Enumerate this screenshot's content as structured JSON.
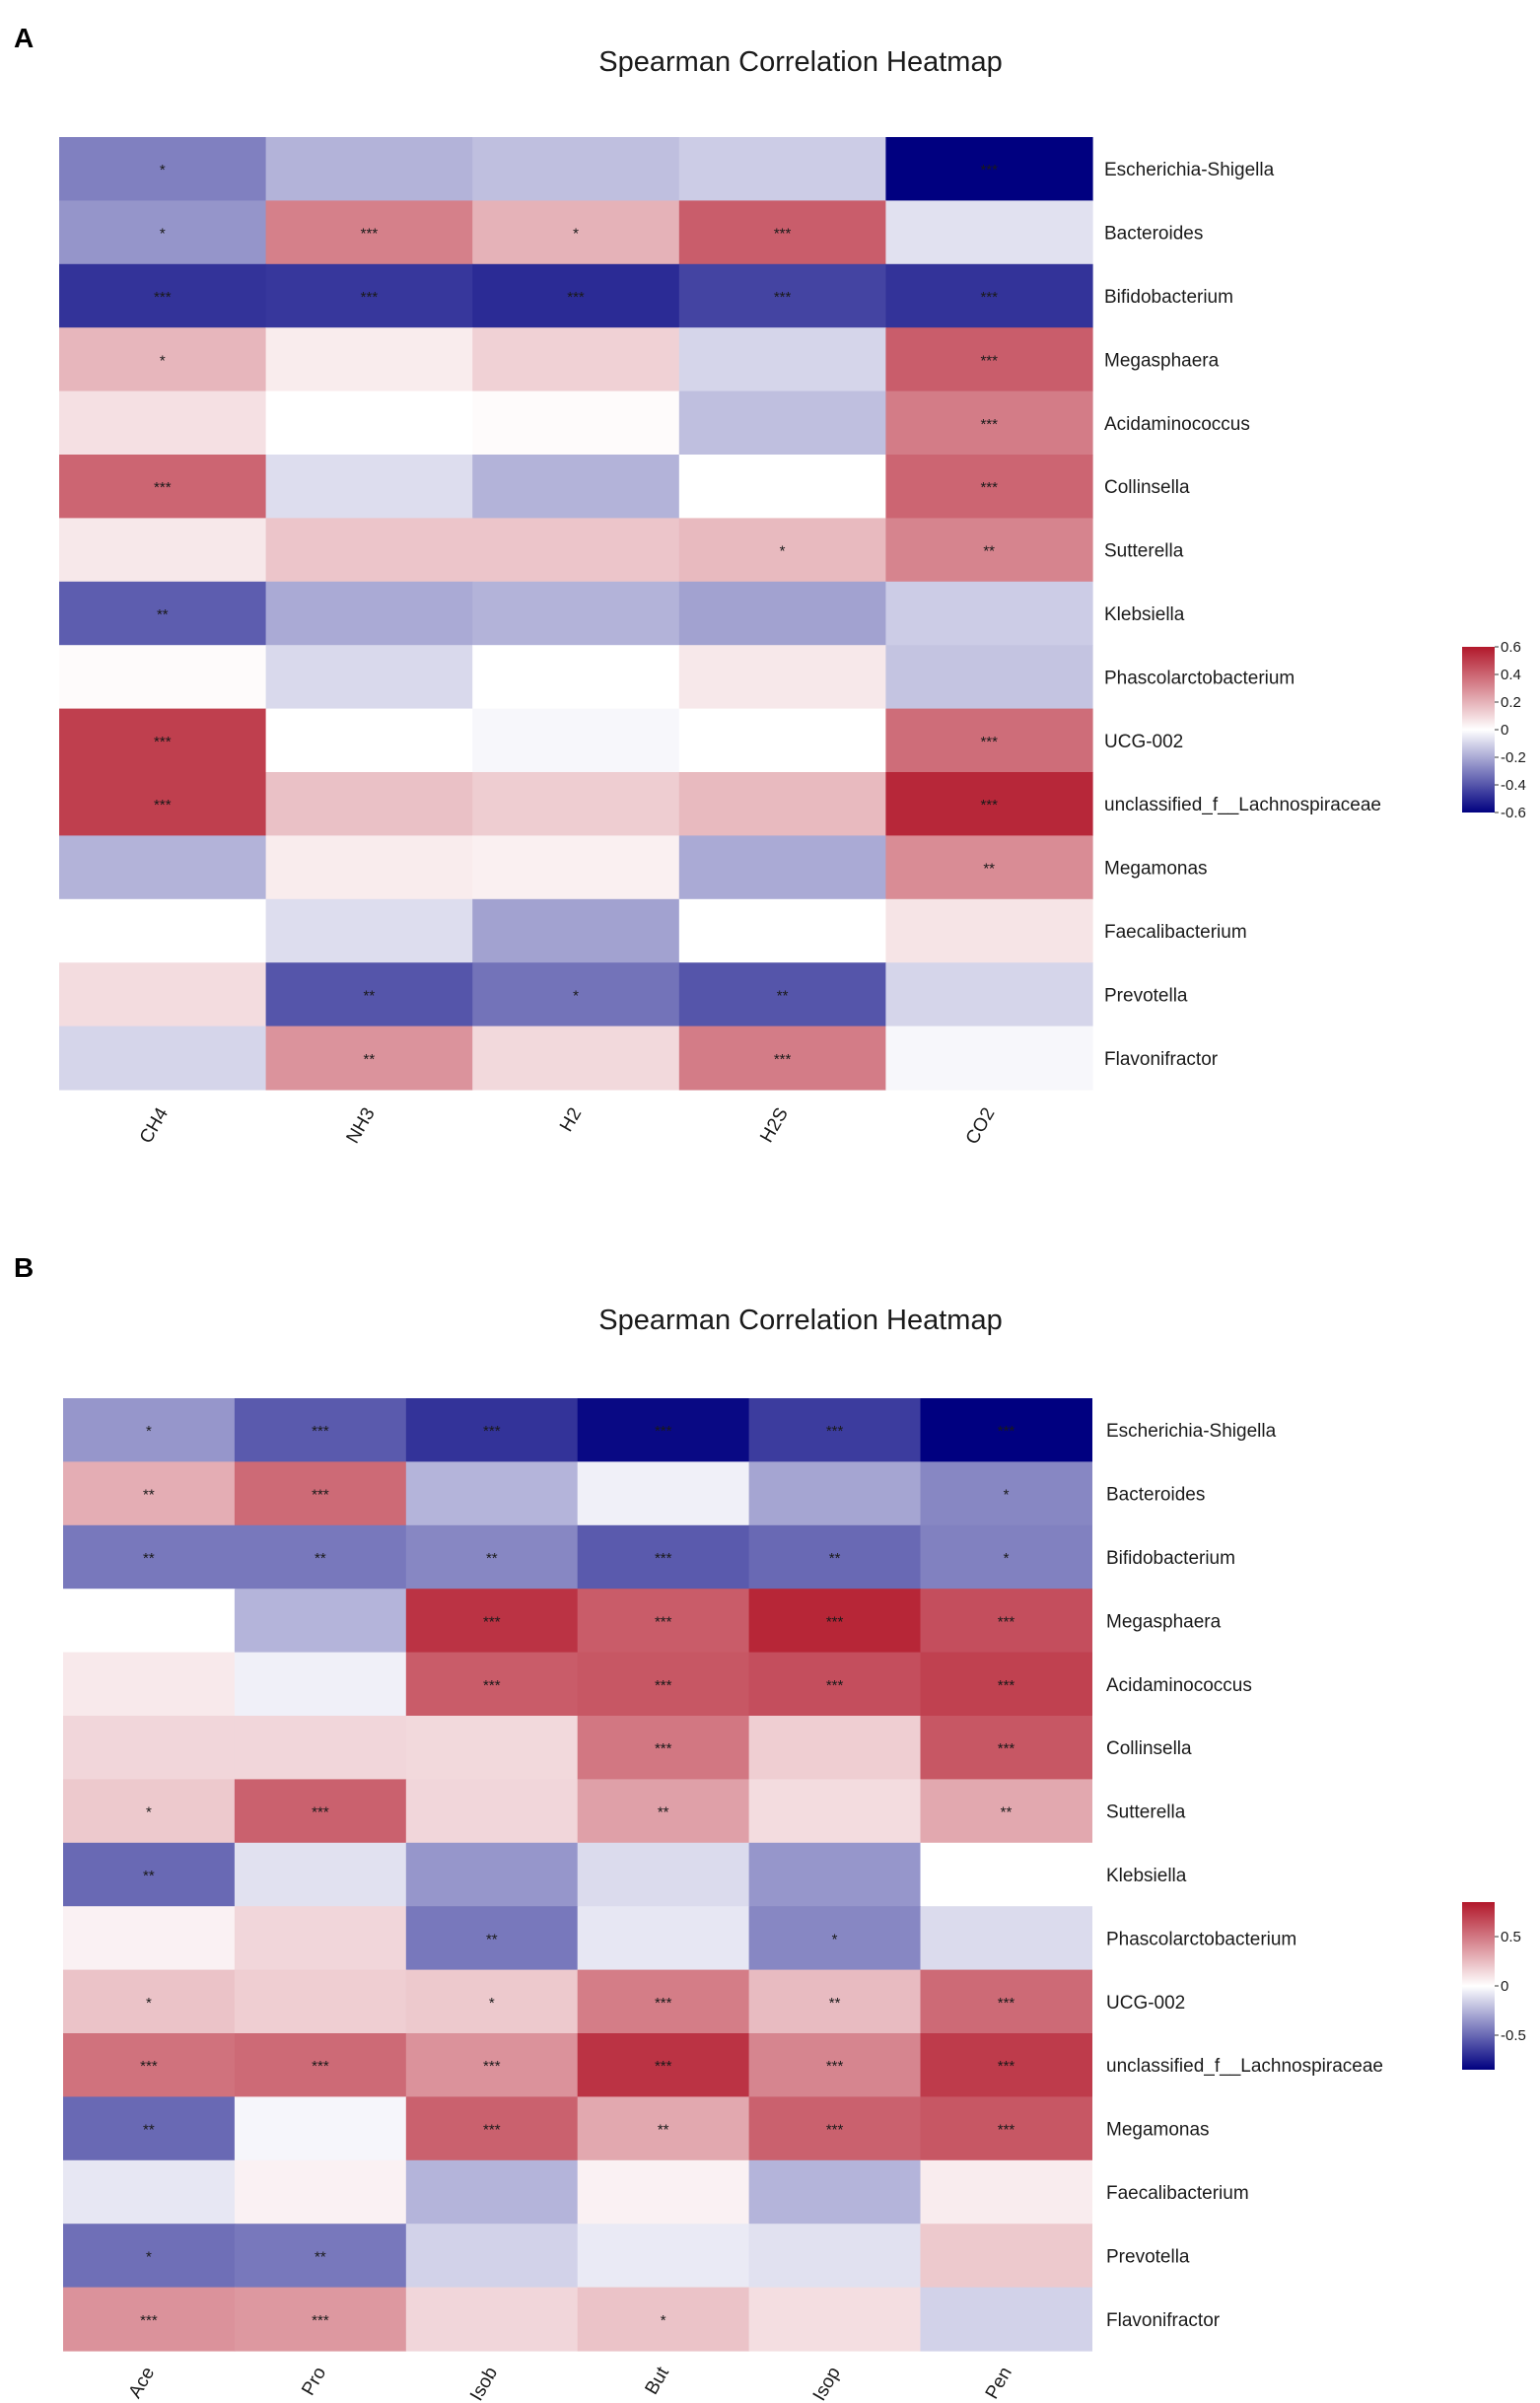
{
  "chart_data": [
    {
      "panel": "A",
      "type": "heatmap",
      "title": "Spearman Correlation Heatmap",
      "columns": [
        "CH4",
        "NH3",
        "H2",
        "H2S",
        "CO2"
      ],
      "rows": [
        "Escherichia-Shigella",
        "Bacteroides",
        "Bifidobacterium",
        "Megasphaera",
        "Acidaminococcus",
        "Collinsella",
        "Sutterella",
        "Klebsiella",
        "Phascolarctobacterium",
        "UCG-002",
        "unclassified_f__Lachnospiraceae",
        "Megamonas",
        "Faecalibacterium",
        "Prevotella",
        "Flavonifractor"
      ],
      "values": [
        [
          -0.3,
          -0.18,
          -0.15,
          -0.12,
          -0.6
        ],
        [
          -0.25,
          0.33,
          0.2,
          0.42,
          -0.07
        ],
        [
          -0.48,
          -0.47,
          -0.5,
          -0.44,
          -0.48
        ],
        [
          0.19,
          0.05,
          0.12,
          -0.1,
          0.42
        ],
        [
          0.08,
          0.0,
          0.01,
          -0.15,
          0.34
        ],
        [
          0.4,
          -0.08,
          -0.18,
          0.0,
          0.4
        ],
        [
          0.06,
          0.15,
          0.15,
          0.18,
          0.32
        ],
        [
          -0.38,
          -0.2,
          -0.18,
          -0.22,
          -0.12
        ],
        [
          0.01,
          -0.09,
          0.0,
          0.06,
          -0.14
        ],
        [
          0.5,
          0.0,
          -0.02,
          0.0,
          0.38
        ],
        [
          0.5,
          0.16,
          0.13,
          0.18,
          0.56
        ],
        [
          -0.18,
          0.05,
          0.04,
          -0.2,
          0.3
        ],
        [
          0.0,
          -0.08,
          -0.22,
          0.0,
          0.07
        ],
        [
          0.09,
          -0.4,
          -0.33,
          -0.4,
          -0.1
        ],
        [
          -0.1,
          0.28,
          0.1,
          0.34,
          -0.02
        ]
      ],
      "significance": [
        [
          "*",
          "",
          "",
          "",
          "***"
        ],
        [
          "*",
          "***",
          "*",
          "***",
          ""
        ],
        [
          "***",
          "***",
          "***",
          "***",
          "***"
        ],
        [
          "*",
          "",
          "",
          "",
          "***"
        ],
        [
          "",
          "",
          "",
          "",
          "***"
        ],
        [
          "***",
          "",
          "",
          "",
          "***"
        ],
        [
          "",
          "",
          "",
          "*",
          "**"
        ],
        [
          "**",
          "",
          "",
          "",
          ""
        ],
        [
          "",
          "",
          "",
          "",
          ""
        ],
        [
          "***",
          "",
          "",
          "",
          "***"
        ],
        [
          "***",
          "",
          "",
          "",
          "***"
        ],
        [
          "",
          "",
          "",
          "",
          "**"
        ],
        [
          "",
          "",
          "",
          "",
          ""
        ],
        [
          "",
          "**",
          "*",
          "**",
          ""
        ],
        [
          "",
          "**",
          "",
          "***",
          ""
        ]
      ],
      "colorbar": {
        "min": -0.6,
        "max": 0.6,
        "ticks": [
          0.6,
          0.4,
          0.2,
          0,
          -0.2,
          -0.4,
          -0.6
        ],
        "tick_labels": [
          "0.6",
          "0.4",
          "0.2",
          "0",
          "-0.2",
          "-0.4",
          "-0.6"
        ]
      }
    },
    {
      "panel": "B",
      "type": "heatmap",
      "title": "Spearman Correlation Heatmap",
      "columns": [
        "Ace",
        "Pro",
        "Isob",
        "But",
        "Isop",
        "Pen"
      ],
      "rows": [
        "Escherichia-Shigella",
        "Bacteroides",
        "Bifidobacterium",
        "Megasphaera",
        "Acidaminococcus",
        "Collinsella",
        "Sutterella",
        "Klebsiella",
        "Phascolarctobacterium",
        "UCG-002",
        "unclassified_f__Lachnospiraceae",
        "Megamonas",
        "Faecalibacterium",
        "Prevotella",
        "Flavonifractor"
      ],
      "values": [
        [
          -0.35,
          -0.55,
          -0.68,
          -0.82,
          -0.65,
          -0.85
        ],
        [
          0.3,
          0.55,
          -0.25,
          -0.05,
          -0.3,
          -0.4
        ],
        [
          -0.45,
          -0.45,
          -0.4,
          -0.55,
          -0.5,
          -0.42
        ],
        [
          0.0,
          -0.25,
          0.75,
          0.6,
          0.8,
          0.65
        ],
        [
          0.08,
          -0.05,
          0.6,
          0.62,
          0.65,
          0.7
        ],
        [
          0.15,
          0.15,
          0.14,
          0.5,
          0.18,
          0.62
        ],
        [
          0.2,
          0.58,
          0.15,
          0.35,
          0.13,
          0.32
        ],
        [
          -0.5,
          -0.1,
          -0.35,
          -0.12,
          -0.35,
          0.0
        ],
        [
          0.05,
          0.15,
          -0.45,
          -0.08,
          -0.4,
          -0.12
        ],
        [
          0.22,
          0.18,
          0.2,
          0.48,
          0.25,
          0.55
        ],
        [
          0.52,
          0.55,
          0.4,
          0.75,
          0.45,
          0.72
        ],
        [
          -0.5,
          -0.03,
          0.58,
          0.32,
          0.58,
          0.62
        ],
        [
          -0.08,
          0.05,
          -0.25,
          0.05,
          -0.25,
          0.07
        ],
        [
          -0.48,
          -0.45,
          -0.15,
          -0.07,
          -0.1,
          0.2
        ],
        [
          0.4,
          0.38,
          0.15,
          0.22,
          0.12,
          -0.15
        ]
      ],
      "significance": [
        [
          "*",
          "***",
          "***",
          "***",
          "***",
          "***"
        ],
        [
          "**",
          "***",
          "",
          "",
          "",
          "*"
        ],
        [
          "**",
          "**",
          "**",
          "***",
          "**",
          "*"
        ],
        [
          "",
          "",
          "***",
          "***",
          "***",
          "***"
        ],
        [
          "",
          "",
          "***",
          "***",
          "***",
          "***"
        ],
        [
          "",
          "",
          "",
          "***",
          "",
          "***"
        ],
        [
          "*",
          "***",
          "",
          "**",
          "",
          "**"
        ],
        [
          "**",
          "",
          "",
          "",
          "",
          ""
        ],
        [
          "",
          "",
          "**",
          "",
          "*",
          ""
        ],
        [
          "*",
          "",
          "*",
          "***",
          "**",
          "***"
        ],
        [
          "***",
          "***",
          "***",
          "***",
          "***",
          "***"
        ],
        [
          "**",
          "",
          "***",
          "**",
          "***",
          "***"
        ],
        [
          "",
          "",
          "",
          "",
          "",
          ""
        ],
        [
          "*",
          "**",
          "",
          "",
          "",
          ""
        ],
        [
          "***",
          "***",
          "",
          "*",
          "",
          ""
        ]
      ],
      "colorbar": {
        "min": -0.85,
        "max": 0.85,
        "ticks": [
          0.5,
          0,
          -0.5
        ],
        "tick_labels": [
          "0.5",
          "0",
          "-0.5"
        ]
      }
    }
  ]
}
